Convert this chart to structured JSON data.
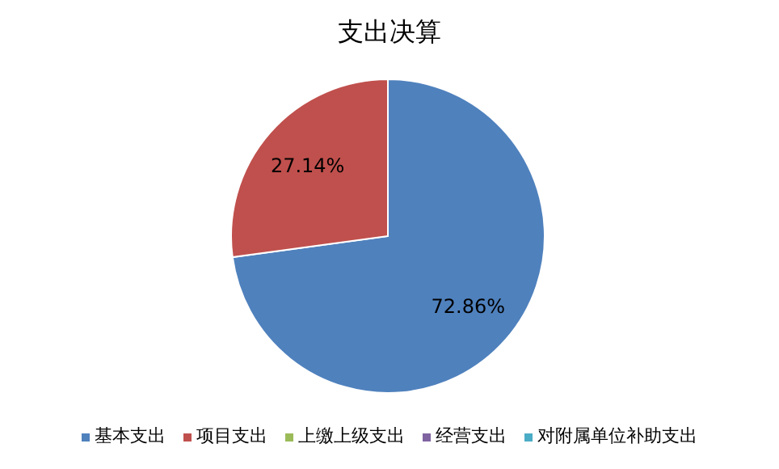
{
  "chart_data": {
    "type": "pie",
    "title": "支出决算",
    "categories": [
      "基本支出",
      "项目支出",
      "上缴上级支出",
      "经营支出",
      "对附属单位补助支出"
    ],
    "values": [
      72.86,
      27.14,
      0,
      0,
      0
    ],
    "colors": [
      "#4f81bd",
      "#c0504d",
      "#9bbb59",
      "#8064a2",
      "#4bacc6"
    ],
    "value_labels": [
      "72.86%",
      "27.14%",
      null,
      null,
      null
    ],
    "legend": "bottom"
  }
}
